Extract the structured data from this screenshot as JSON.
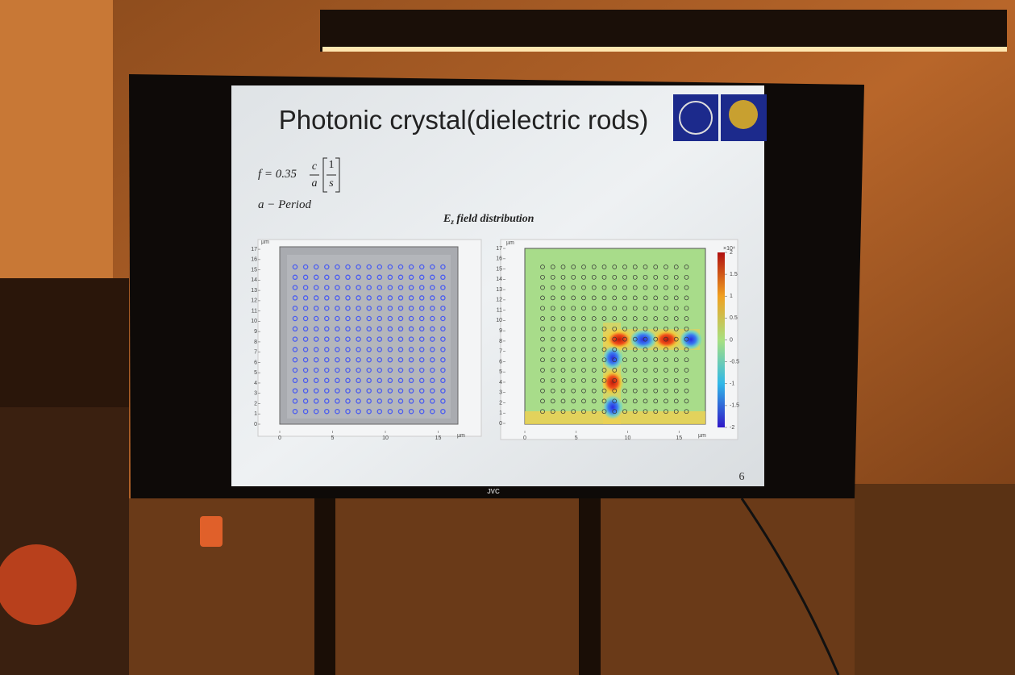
{
  "tv": {
    "brand": "JVC"
  },
  "slide": {
    "title": "Photonic crystal(dielectric rods)",
    "formula": {
      "lhs": "f = 0.35",
      "numerator": "c",
      "denominator": "a",
      "unit_numerator": "1",
      "unit_denominator": "s"
    },
    "period_label": "a − Period",
    "plot_title_symbol": "E",
    "plot_title_subscript": "z",
    "plot_title_rest": " field distribution",
    "page_number": 6
  },
  "plots": [
    {
      "unit": "µm",
      "xticks": [
        0,
        5,
        10,
        15
      ],
      "yticks": [
        0,
        1,
        2,
        3,
        4,
        5,
        6,
        7,
        8,
        9,
        10,
        11,
        12,
        13,
        14,
        15,
        16,
        17
      ]
    },
    {
      "unit": "µm",
      "xticks": [
        0,
        5,
        10,
        15
      ],
      "yticks": [
        0,
        1,
        2,
        3,
        4,
        5,
        6,
        7,
        8,
        9,
        10,
        11,
        12,
        13,
        14,
        15,
        16,
        17
      ],
      "colorbar_ticks": [
        2,
        1.5,
        1,
        0.5,
        0,
        -0.5,
        -1,
        -1.5,
        -2
      ],
      "colorbar_multiplier": "×10⁴"
    }
  ]
}
